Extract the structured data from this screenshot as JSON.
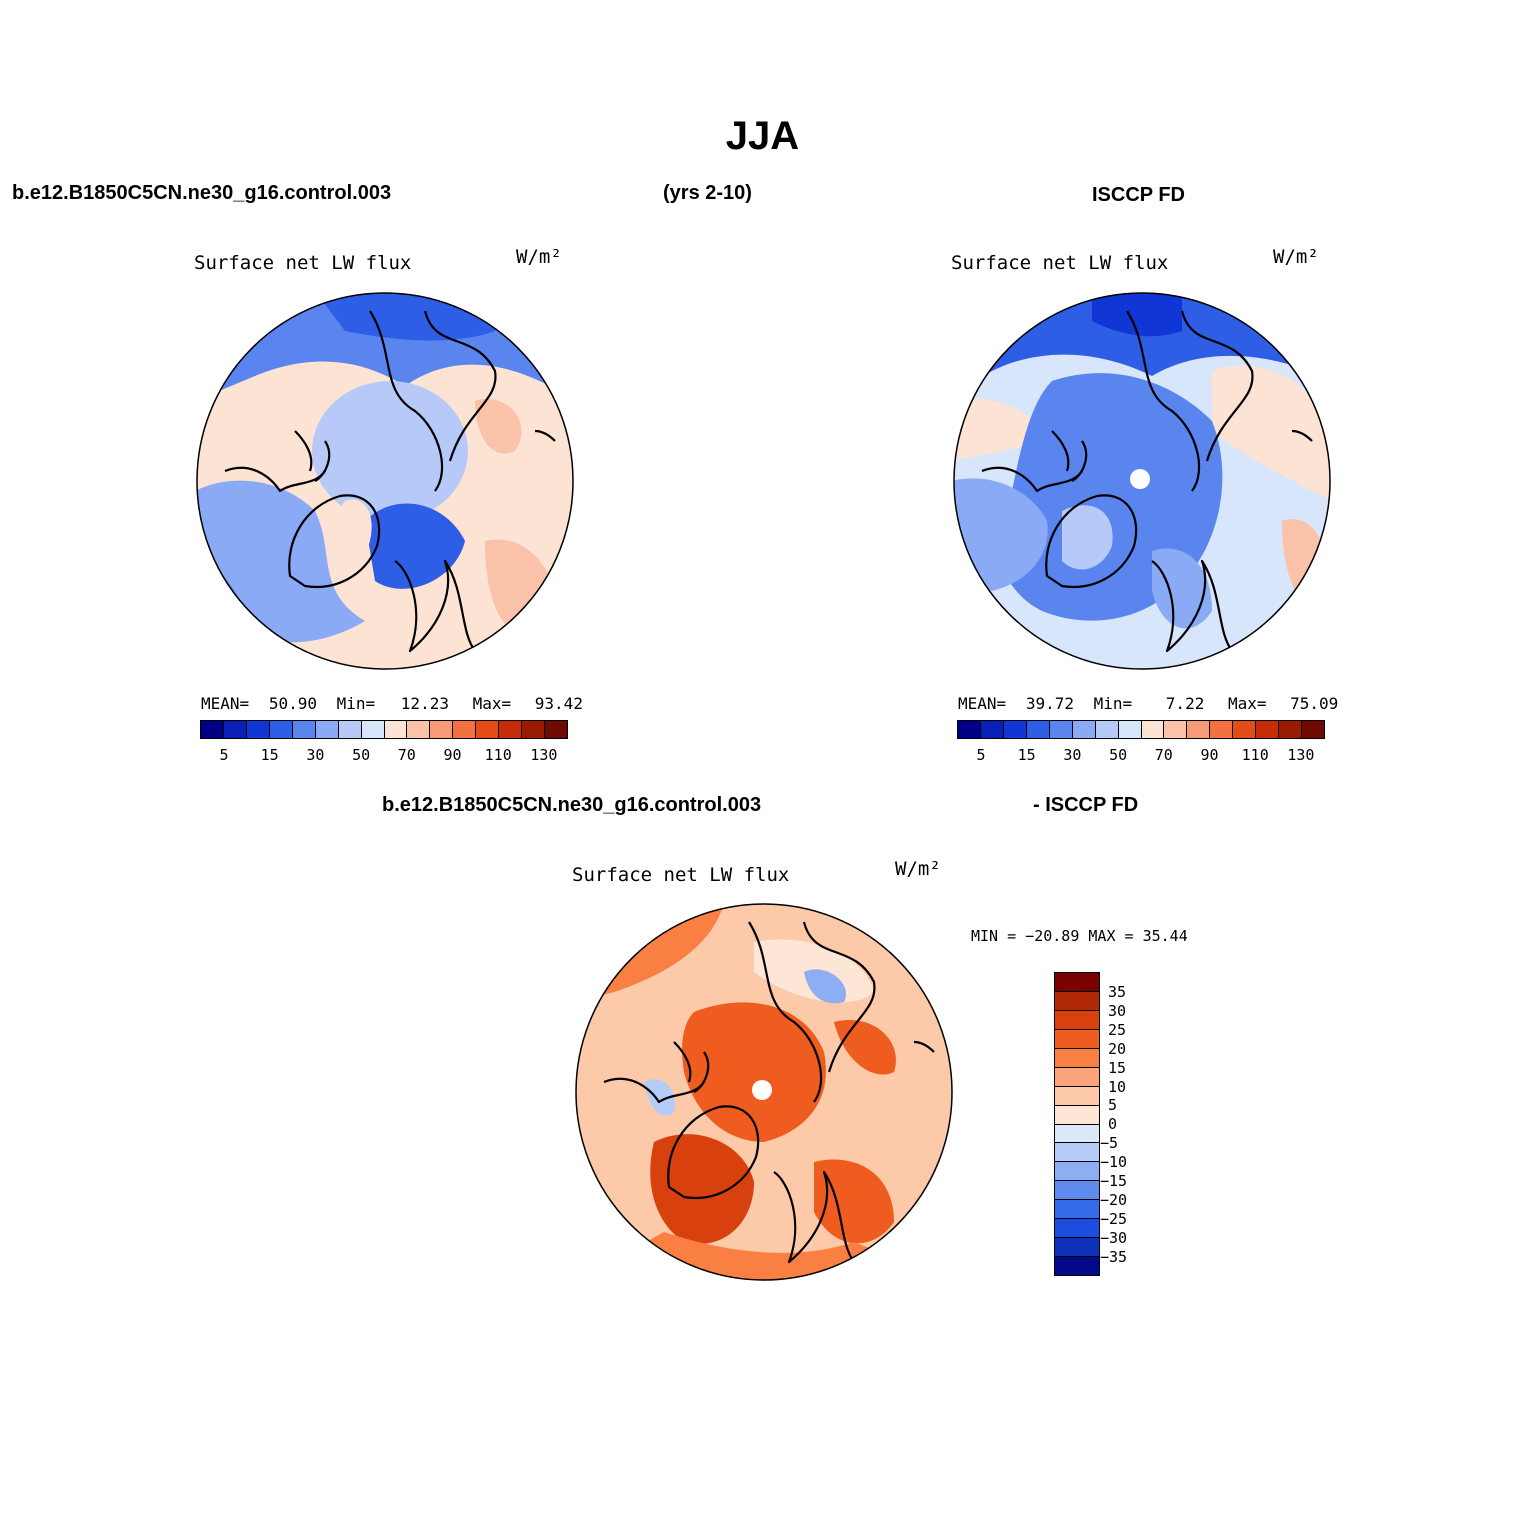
{
  "title": "JJA",
  "header": {
    "case": "b.e12.B1850C5CN.ne30_g16.control.003",
    "years": "(yrs 2-10)",
    "obs": "ISCCP FD"
  },
  "panels": {
    "model": {
      "title": "Surface net LW flux",
      "units": "W/m²",
      "stats": {
        "mean_label": "MEAN=",
        "mean": "50.90",
        "min_label": "Min=",
        "min": "12.23",
        "max_label": "Max=",
        "max": "93.42"
      }
    },
    "obs": {
      "title": "Surface net LW flux",
      "units": "W/m²",
      "stats": {
        "mean_label": "MEAN=",
        "mean": "39.72",
        "min_label": "Min=",
        "min": "7.22",
        "max_label": "Max=",
        "max": "75.09"
      }
    },
    "diff": {
      "header_left": "b.e12.B1850C5CN.ne30_g16.control.003",
      "header_right": "- ISCCP FD",
      "title": "Surface net LW flux",
      "units": "W/m²",
      "minmax": "MIN = −20.89 MAX =  35.44"
    }
  },
  "colorbar_abs": {
    "colors": [
      "#000087",
      "#0a1fb5",
      "#1136d6",
      "#2f5ee6",
      "#5a85ef",
      "#8aaaf5",
      "#b6c9f8",
      "#d8e6fb",
      "#fde3d3",
      "#fac2a8",
      "#f79a76",
      "#f2713f",
      "#e54b16",
      "#c62d06",
      "#9a1a02",
      "#6e0a00"
    ],
    "labels": [
      "5",
      "15",
      "30",
      "50",
      "70",
      "90",
      "110",
      "130"
    ]
  },
  "colorbar_diff": {
    "colors": [
      "#7b0000",
      "#b22a05",
      "#d8400e",
      "#ef5c20",
      "#f97f43",
      "#fba37a",
      "#fcc9a9",
      "#fde6d6",
      "#dce9fb",
      "#b5ccf7",
      "#8daef3",
      "#5f8bee",
      "#346be8",
      "#1a4de0",
      "#0d31b8",
      "#000a8a"
    ],
    "labels": [
      "35",
      "30",
      "25",
      "20",
      "15",
      "10",
      "5",
      "0",
      "−5",
      "−10",
      "−15",
      "−20",
      "−25",
      "−30",
      "−35"
    ]
  },
  "maps": {
    "model": {
      "ocean_fill": "#b6c9f8",
      "pole_marker": false
    },
    "obs": {
      "ocean_fill": "#5a85ef",
      "pole_marker": true
    },
    "diff": {
      "ocean_fill": "#f79a76",
      "pole_marker": true
    }
  }
}
